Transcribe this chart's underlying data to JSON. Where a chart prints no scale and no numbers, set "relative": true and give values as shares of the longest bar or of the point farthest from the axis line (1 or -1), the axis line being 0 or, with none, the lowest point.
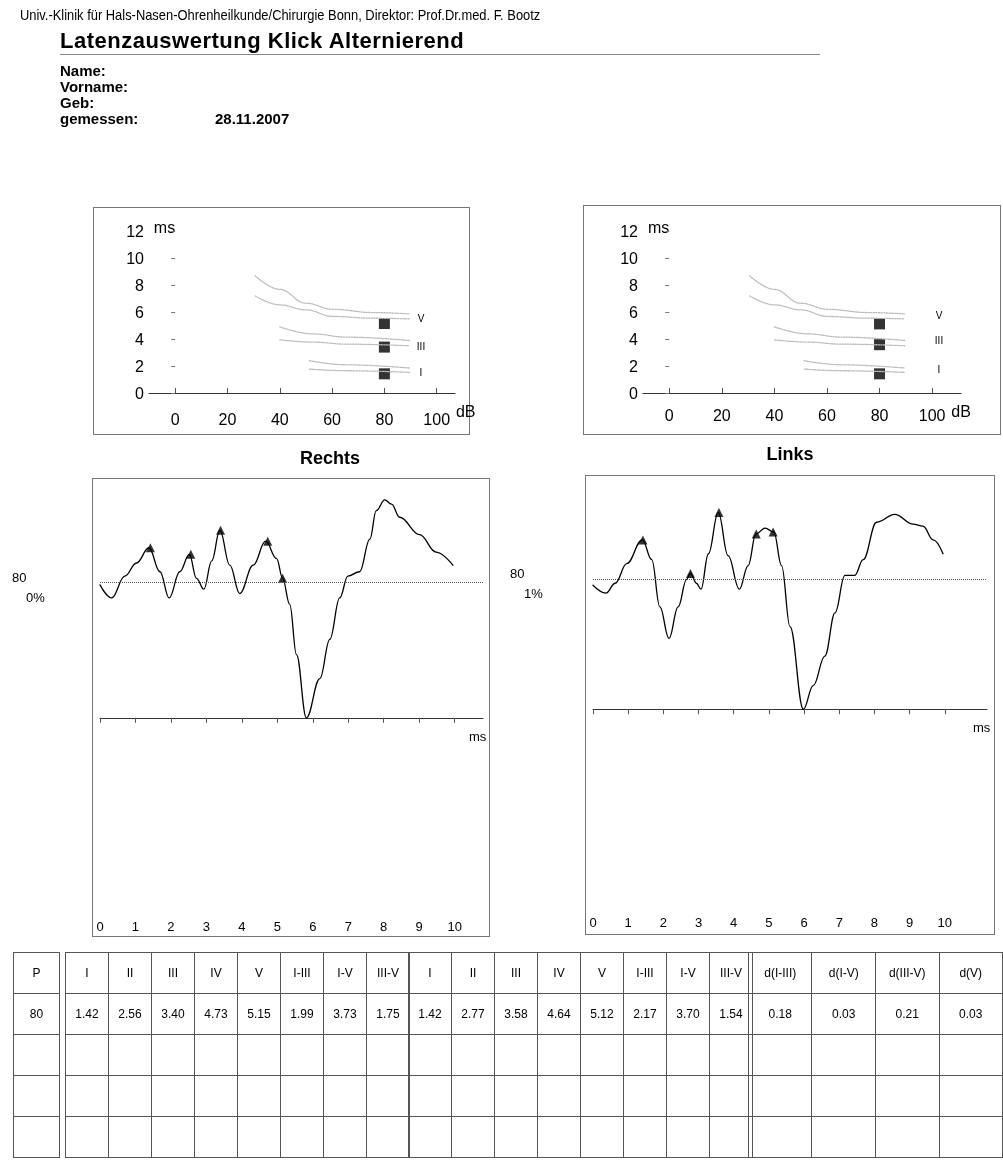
{
  "chart_data": [
    {
      "type": "other",
      "title": "Latenzauswertung Klick Alternierend",
      "subtitle": "Univ.-Klinik für Hals-Nasen-Ohrenheilkunde/Chirurgie Bonn, Direktor: Prof.Dr.med. F. Bootz",
      "annotations": [
        "Name:",
        "Vorname:",
        "Geb:",
        "gemessen:",
        "28.11.2007"
      ]
    },
    {
      "type": "scatter",
      "marker": "square",
      "xlabel": "dB",
      "ylabel": "ms",
      "xlim": [
        -10,
        107
      ],
      "xticks": [
        0,
        20,
        40,
        60,
        80,
        100
      ],
      "ylim": [
        0,
        12
      ],
      "yticks": [
        0,
        2,
        4,
        6,
        8,
        10,
        12
      ],
      "grid": false,
      "series": [
        {
          "type": "scatter",
          "color": "#000000",
          "x": [
            80,
            80,
            80
          ],
          "values": [
            1.42,
            3.4,
            5.15
          ]
        },
        {
          "type": "line",
          "color": "#bbbbbb",
          "marker": "none",
          "line_style": "dotted",
          "x": [
            30.6,
            39.9,
            50,
            60.3,
            75.5,
            89.6
          ],
          "values": [
            8.68,
            7.68,
            6.65,
            6.2,
            5.96,
            5.86
          ]
        },
        {
          "type": "line",
          "color": "#bbbbbb",
          "marker": "none",
          "line_style": "dotted",
          "x": [
            30.6,
            39.9,
            50,
            60.3,
            75.5,
            89.6
          ],
          "values": [
            7.19,
            6.53,
            6.16,
            5.67,
            5.54,
            5.49
          ]
        },
        {
          "type": "line",
          "color": "#bbbbbb",
          "marker": "none",
          "line_style": "dotted",
          "x": [
            40,
            52.6,
            65.4,
            89.6
          ],
          "values": [
            4.9,
            4.38,
            4.14,
            3.89
          ]
        },
        {
          "type": "line",
          "color": "#bbbbbb",
          "marker": "none",
          "line_style": "dotted",
          "x": [
            40,
            52.6,
            65.4,
            89.6
          ],
          "values": [
            3.94,
            3.77,
            3.62,
            3.5
          ]
        },
        {
          "type": "line",
          "color": "#bbbbbb",
          "marker": "none",
          "line_style": "dotted",
          "x": [
            51.3,
            65.4,
            89.6
          ],
          "values": [
            2.39,
            2.09,
            1.85
          ]
        },
        {
          "type": "line",
          "color": "#bbbbbb",
          "marker": "none",
          "line_style": "dotted",
          "x": [
            51.3,
            65.4,
            89.6
          ],
          "values": [
            1.77,
            1.65,
            1.53
          ]
        }
      ],
      "annotations": [
        "V",
        "III",
        "I"
      ]
    },
    {
      "type": "scatter",
      "marker": "square",
      "xlabel": "dB",
      "ylabel": "ms",
      "xlim": [
        -10,
        111
      ],
      "xticks": [
        0,
        20,
        40,
        60,
        80,
        100
      ],
      "ylim": [
        0,
        12
      ],
      "yticks": [
        0,
        2,
        4,
        6,
        8,
        10,
        12
      ],
      "grid": false,
      "series": [
        {
          "type": "scatter",
          "color": "#000000",
          "x": [
            80,
            80,
            80
          ],
          "values": [
            1.42,
            3.58,
            5.12
          ]
        },
        {
          "type": "line",
          "color": "#bbbbbb",
          "marker": "none",
          "line_style": "dotted",
          "x": [
            30.6,
            39.9,
            50,
            60.3,
            75.5,
            89.6
          ],
          "values": [
            8.68,
            7.68,
            6.65,
            6.2,
            5.96,
            5.86
          ]
        },
        {
          "type": "line",
          "color": "#bbbbbb",
          "marker": "none",
          "line_style": "dotted",
          "x": [
            30.6,
            39.9,
            50,
            60.3,
            75.5,
            89.6
          ],
          "values": [
            7.19,
            6.53,
            6.16,
            5.67,
            5.54,
            5.49
          ]
        },
        {
          "type": "line",
          "color": "#bbbbbb",
          "marker": "none",
          "line_style": "dotted",
          "x": [
            40,
            52.6,
            65.4,
            89.6
          ],
          "values": [
            4.9,
            4.38,
            4.14,
            3.89
          ]
        },
        {
          "type": "line",
          "color": "#bbbbbb",
          "marker": "none",
          "line_style": "dotted",
          "x": [
            40,
            52.6,
            65.4,
            89.6
          ],
          "values": [
            3.94,
            3.77,
            3.62,
            3.5
          ]
        },
        {
          "type": "line",
          "color": "#bbbbbb",
          "marker": "none",
          "line_style": "dotted",
          "x": [
            51.3,
            65.4,
            89.6
          ],
          "values": [
            2.39,
            2.09,
            1.85
          ]
        },
        {
          "type": "line",
          "color": "#bbbbbb",
          "marker": "none",
          "line_style": "dotted",
          "x": [
            51.3,
            65.4,
            89.6
          ],
          "values": [
            1.77,
            1.65,
            1.53
          ]
        }
      ],
      "annotations": [
        "V",
        "III",
        "I"
      ]
    },
    {
      "type": "line",
      "title": "Rechts",
      "relative": true,
      "xlabel": "ms",
      "xlim": [
        0,
        10.8
      ],
      "xticks": [
        0,
        1,
        2,
        3,
        4,
        5,
        6,
        7,
        8,
        9,
        10
      ],
      "tick_labels": "x",
      "grid": false,
      "series": [
        {
          "type": "line",
          "color": "#000000",
          "marker": "none",
          "x": [
            0,
            0.33,
            0.7,
            1.03,
            1.38,
            1.69,
            1.95,
            2.25,
            2.52,
            2.72,
            2.93,
            3.15,
            3.38,
            3.66,
            3.94,
            4.32,
            4.67,
            4.98,
            5.15,
            5.35,
            5.54,
            5.82,
            6.2,
            6.48,
            6.76,
            6.99,
            7.32,
            7.61,
            7.79,
            8.03,
            8.22,
            8.45,
            9.01,
            9.48,
            9.95
          ],
          "values": [
            0.61,
            0.55,
            0.65,
            0.71,
            0.78,
            0.67,
            0.55,
            0.67,
            0.75,
            0.64,
            0.59,
            0.72,
            0.86,
            0.7,
            0.57,
            0.7,
            0.81,
            0.73,
            0.64,
            0.52,
            0.29,
            0,
            0.18,
            0.36,
            0.55,
            0.65,
            0.67,
            0.82,
            0.95,
            1,
            0.98,
            0.92,
            0.84,
            0.76,
            0.7
          ]
        },
        {
          "type": "scatter",
          "color": "#000000",
          "marker": "triangle",
          "x": [
            1.42,
            2.56,
            3.4,
            4.73,
            5.15
          ],
          "values": [
            0.78,
            0.75,
            0.86,
            0.81,
            0.64
          ]
        }
      ],
      "ref_lines": [
        {
          "axis": "y",
          "value": 0.62,
          "line_style": "dotted",
          "color": "#555555"
        }
      ],
      "annotations": [
        "80",
        "0%"
      ]
    },
    {
      "type": "line",
      "title": "Links",
      "relative": true,
      "xlabel": "ms",
      "xlim": [
        0,
        11.2
      ],
      "xticks": [
        0,
        1,
        2,
        3,
        4,
        5,
        6,
        7,
        8,
        9,
        10
      ],
      "tick_labels": "x",
      "grid": false,
      "series": [
        {
          "type": "line",
          "color": "#000000",
          "marker": "none",
          "x": [
            0,
            0.37,
            0.63,
            0.96,
            1.4,
            1.67,
            1.9,
            2.16,
            2.42,
            2.66,
            2.77,
            2.94,
            3.07,
            3.28,
            3.56,
            3.84,
            4.16,
            4.41,
            4.63,
            4.89,
            5.14,
            5.36,
            5.6,
            5.98,
            6.26,
            6.59,
            6.88,
            7.16,
            7.44,
            7.68,
            8.06,
            8.58,
            9.1,
            9.38,
            9.67,
            9.95
          ],
          "values": [
            0.63,
            0.59,
            0.64,
            0.74,
            0.86,
            0.76,
            0.52,
            0.36,
            0.52,
            0.66,
            0.69,
            0.64,
            0.61,
            0.79,
            1,
            0.78,
            0.61,
            0.73,
            0.89,
            0.92,
            0.9,
            0.73,
            0.42,
            0,
            0.12,
            0.27,
            0.49,
            0.68,
            0.68,
            0.76,
            0.95,
            0.99,
            0.94,
            0.93,
            0.86,
            0.79
          ]
        },
        {
          "type": "scatter",
          "color": "#000000",
          "marker": "triangle",
          "x": [
            1.42,
            2.77,
            3.58,
            4.64,
            5.12
          ],
          "values": [
            0.86,
            0.69,
            1,
            0.89,
            0.9
          ]
        }
      ],
      "ref_lines": [
        {
          "axis": "y",
          "value": 0.66,
          "line_style": "dotted",
          "color": "#555555"
        }
      ],
      "annotations": [
        "80",
        "1%"
      ]
    },
    {
      "type": "other",
      "annotations": [
        "P",
        "I",
        "II",
        "III",
        "IV",
        "V",
        "I-III",
        "I-V",
        "III-V",
        "I",
        "II",
        "III",
        "IV",
        "V",
        "I-III",
        "I-V",
        "III-V",
        "d(I-III)",
        "d(I-V)",
        "d(III-V)",
        "d(V)",
        "80",
        "1.42",
        "2.56",
        "3.40",
        "4.73",
        "5.15",
        "1.99",
        "3.73",
        "1.75",
        "1.42",
        "2.77",
        "3.58",
        "4.64",
        "5.12",
        "2.17",
        "3.70",
        "1.54",
        "0.18",
        "0.03",
        "0.21",
        "0.03"
      ]
    }
  ]
}
